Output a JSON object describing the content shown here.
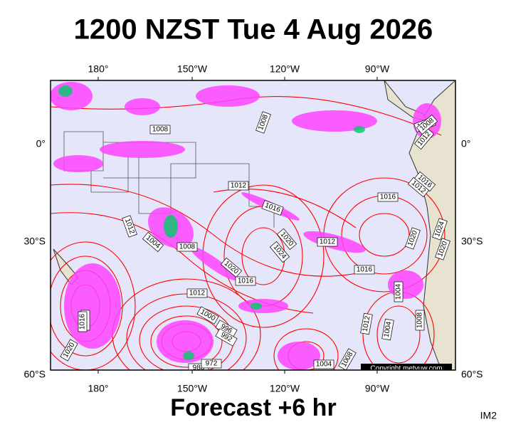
{
  "header": {
    "title": "1200 NZST Tue 4 Aug 2026"
  },
  "map": {
    "lon_labels": [
      "180°",
      "150°W",
      "120°W",
      "90°W"
    ],
    "lat_labels": [
      "0°",
      "30°S",
      "60°S"
    ],
    "isobar_labels": [
      1008,
      1008,
      1008,
      1012,
      1012,
      1016,
      1016,
      1016,
      1016,
      1012,
      1020,
      1024,
      1012,
      1004,
      1008,
      1020,
      1016,
      1016,
      1012,
      1008,
      1004,
      1012,
      1004,
      1000,
      996,
      992,
      988,
      972,
      1016,
      1020,
      1012,
      1008,
      1004,
      1008,
      1020,
      1024,
      1020
    ],
    "copyright": "Copyright metvuw.com"
  },
  "footer": {
    "caption": "Forecast +6 hr",
    "code": "IM2"
  }
}
